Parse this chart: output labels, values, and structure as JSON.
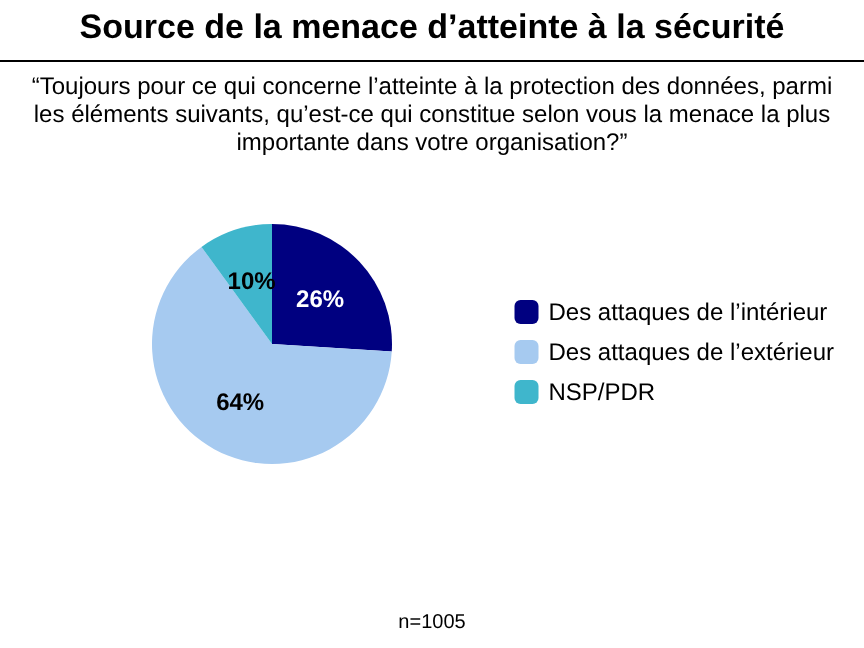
{
  "chart_data": {
    "type": "pie",
    "title": "Source de la menace d’atteinte à la sécurité",
    "subtitle": "“Toujours pour ce qui concerne l’atteinte à la protection des données, parmi les éléments suivants, qu’est-ce qui constitue selon vous la menace la plus importante dans votre organisation?”",
    "categories": [
      "Des attaques de l’intérieur",
      "Des attaques de l’extérieur",
      "NSP/PDR"
    ],
    "values": [
      26,
      64,
      10
    ],
    "colors": [
      "#000080",
      "#a6caf0",
      "#3fb6cc"
    ],
    "value_labels": [
      "26%",
      "64%",
      "10%"
    ],
    "legend": "right",
    "annotations": [
      "n=1005"
    ]
  }
}
